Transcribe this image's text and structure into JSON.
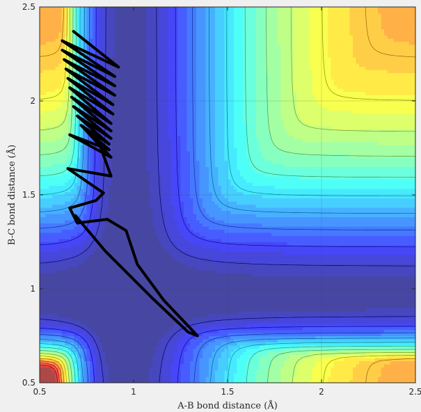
{
  "chart_data": {
    "type": "contour",
    "xlabel": "A-B bond distance (Å)",
    "ylabel": "B-C bond distance (Å)",
    "xlim": [
      0.5,
      2.5
    ],
    "ylim": [
      0.5,
      2.5
    ],
    "x_ticks": [
      {
        "value": 0.5,
        "label": "0.5"
      },
      {
        "value": 1,
        "label": "1"
      },
      {
        "value": 1.5,
        "label": "1.5"
      },
      {
        "value": 2,
        "label": "2"
      },
      {
        "value": 2.5,
        "label": "2.5"
      }
    ],
    "y_ticks": [
      {
        "value": 0.5,
        "label": "0.5"
      },
      {
        "value": 1,
        "label": "1"
      },
      {
        "value": 1.5,
        "label": "1.5"
      },
      {
        "value": 2,
        "label": "2"
      },
      {
        "value": 2.5,
        "label": "2.5"
      }
    ],
    "grid": true,
    "colormap": "jet",
    "surface": "London-Eyring-Polanyi-Sato type potential energy surface for A + BC",
    "trajectory": [
      [
        0.68,
        2.37
      ],
      [
        0.92,
        2.18
      ],
      [
        0.62,
        2.32
      ],
      [
        0.9,
        2.13
      ],
      [
        0.62,
        2.27
      ],
      [
        0.9,
        2.08
      ],
      [
        0.63,
        2.22
      ],
      [
        0.9,
        2.03
      ],
      [
        0.64,
        2.17
      ],
      [
        0.89,
        1.98
      ],
      [
        0.65,
        2.12
      ],
      [
        0.89,
        1.93
      ],
      [
        0.66,
        2.07
      ],
      [
        0.88,
        1.88
      ],
      [
        0.67,
        2.02
      ],
      [
        0.88,
        1.84
      ],
      [
        0.68,
        1.97
      ],
      [
        0.88,
        1.8
      ],
      [
        0.7,
        1.92
      ],
      [
        0.87,
        1.77
      ],
      [
        0.72,
        1.87
      ],
      [
        0.87,
        1.74
      ],
      [
        0.66,
        1.82
      ],
      [
        0.88,
        1.7
      ],
      [
        0.73,
        1.86
      ],
      [
        0.8,
        1.82
      ],
      [
        0.88,
        1.6
      ],
      [
        0.65,
        1.64
      ],
      [
        0.84,
        1.51
      ],
      [
        0.8,
        1.47
      ],
      [
        0.66,
        1.43
      ],
      [
        0.7,
        1.35
      ],
      [
        0.86,
        1.37
      ],
      [
        0.96,
        1.31
      ],
      [
        1.02,
        1.13
      ],
      [
        1.16,
        0.94
      ],
      [
        1.34,
        0.75
      ],
      [
        1.29,
        0.77
      ],
      [
        1.1,
        0.95
      ],
      [
        0.85,
        1.2
      ],
      [
        0.69,
        1.39
      ]
    ]
  }
}
